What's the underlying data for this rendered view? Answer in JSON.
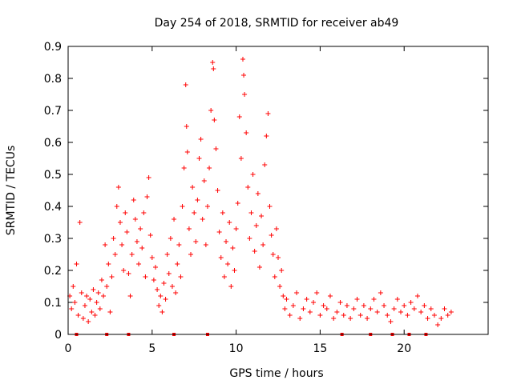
{
  "chart_data": {
    "type": "scatter",
    "title": "Day 254 of 2018, SRMTID for receiver ab49",
    "xlabel": "GPS time / hours",
    "ylabel": "SRMTID / TECUs",
    "xlim": [
      0,
      25
    ],
    "ylim": [
      0,
      0.9
    ],
    "x_ticks": [
      0,
      5,
      10,
      15,
      20
    ],
    "y_ticks": [
      0,
      0.1,
      0.2,
      0.3,
      0.4,
      0.5,
      0.6,
      0.7,
      0.8,
      0.9
    ],
    "grid": false,
    "marker": "+",
    "color": "#ff0000",
    "series": [
      {
        "name": "SRMTID",
        "points": [
          [
            0.1,
            0.12
          ],
          [
            0.2,
            0.08
          ],
          [
            0.3,
            0.15
          ],
          [
            0.4,
            0.1
          ],
          [
            0.5,
            0.22
          ],
          [
            0.6,
            0.06
          ],
          [
            0.7,
            0.35
          ],
          [
            0.8,
            0.13
          ],
          [
            0.9,
            0.05
          ],
          [
            1.0,
            0.09
          ],
          [
            1.1,
            0.12
          ],
          [
            1.2,
            0.04
          ],
          [
            1.3,
            0.11
          ],
          [
            1.4,
            0.07
          ],
          [
            1.5,
            0.14
          ],
          [
            1.6,
            0.06
          ],
          [
            1.7,
            0.1
          ],
          [
            1.8,
            0.13
          ],
          [
            1.9,
            0.08
          ],
          [
            2.0,
            0.17
          ],
          [
            2.1,
            0.12
          ],
          [
            2.2,
            0.28
          ],
          [
            2.3,
            0.15
          ],
          [
            2.4,
            0.22
          ],
          [
            2.5,
            0.07
          ],
          [
            2.6,
            0.18
          ],
          [
            2.7,
            0.3
          ],
          [
            2.8,
            0.25
          ],
          [
            2.9,
            0.4
          ],
          [
            3.0,
            0.46
          ],
          [
            3.1,
            0.35
          ],
          [
            3.2,
            0.28
          ],
          [
            3.3,
            0.2
          ],
          [
            3.4,
            0.38
          ],
          [
            3.5,
            0.32
          ],
          [
            3.6,
            0.19
          ],
          [
            3.7,
            0.12
          ],
          [
            3.8,
            0.25
          ],
          [
            3.9,
            0.42
          ],
          [
            4.0,
            0.36
          ],
          [
            4.1,
            0.29
          ],
          [
            4.2,
            0.22
          ],
          [
            4.3,
            0.33
          ],
          [
            4.4,
            0.27
          ],
          [
            4.5,
            0.38
          ],
          [
            4.6,
            0.18
          ],
          [
            4.7,
            0.43
          ],
          [
            4.8,
            0.49
          ],
          [
            4.9,
            0.31
          ],
          [
            5.0,
            0.24
          ],
          [
            5.1,
            0.17
          ],
          [
            5.2,
            0.21
          ],
          [
            5.3,
            0.14
          ],
          [
            5.4,
            0.09
          ],
          [
            5.5,
            0.12
          ],
          [
            5.6,
            0.07
          ],
          [
            5.7,
            0.16
          ],
          [
            5.8,
            0.11
          ],
          [
            5.9,
            0.25
          ],
          [
            6.0,
            0.19
          ],
          [
            6.1,
            0.3
          ],
          [
            6.2,
            0.15
          ],
          [
            6.3,
            0.36
          ],
          [
            6.4,
            0.13
          ],
          [
            6.5,
            0.22
          ],
          [
            6.6,
            0.28
          ],
          [
            6.7,
            0.18
          ],
          [
            6.8,
            0.4
          ],
          [
            6.9,
            0.52
          ],
          [
            7.0,
            0.78
          ],
          [
            7.05,
            0.65
          ],
          [
            7.1,
            0.57
          ],
          [
            7.2,
            0.33
          ],
          [
            7.3,
            0.25
          ],
          [
            7.4,
            0.46
          ],
          [
            7.5,
            0.38
          ],
          [
            7.6,
            0.29
          ],
          [
            7.7,
            0.42
          ],
          [
            7.8,
            0.55
          ],
          [
            7.9,
            0.61
          ],
          [
            8.0,
            0.36
          ],
          [
            8.1,
            0.48
          ],
          [
            8.2,
            0.28
          ],
          [
            8.3,
            0.4
          ],
          [
            8.4,
            0.52
          ],
          [
            8.5,
            0.7
          ],
          [
            8.6,
            0.85
          ],
          [
            8.65,
            0.83
          ],
          [
            8.7,
            0.67
          ],
          [
            8.8,
            0.58
          ],
          [
            8.9,
            0.45
          ],
          [
            9.0,
            0.32
          ],
          [
            9.1,
            0.24
          ],
          [
            9.2,
            0.38
          ],
          [
            9.3,
            0.18
          ],
          [
            9.4,
            0.29
          ],
          [
            9.5,
            0.22
          ],
          [
            9.6,
            0.35
          ],
          [
            9.7,
            0.15
          ],
          [
            9.8,
            0.27
          ],
          [
            9.9,
            0.2
          ],
          [
            10.0,
            0.33
          ],
          [
            10.1,
            0.41
          ],
          [
            10.2,
            0.68
          ],
          [
            10.3,
            0.55
          ],
          [
            10.4,
            0.86
          ],
          [
            10.45,
            0.81
          ],
          [
            10.5,
            0.75
          ],
          [
            10.6,
            0.63
          ],
          [
            10.7,
            0.46
          ],
          [
            10.8,
            0.3
          ],
          [
            10.9,
            0.38
          ],
          [
            11.0,
            0.5
          ],
          [
            11.1,
            0.26
          ],
          [
            11.2,
            0.34
          ],
          [
            11.3,
            0.44
          ],
          [
            11.4,
            0.21
          ],
          [
            11.5,
            0.37
          ],
          [
            11.6,
            0.28
          ],
          [
            11.7,
            0.53
          ],
          [
            11.8,
            0.62
          ],
          [
            11.9,
            0.69
          ],
          [
            12.0,
            0.4
          ],
          [
            12.1,
            0.31
          ],
          [
            12.2,
            0.25
          ],
          [
            12.3,
            0.18
          ],
          [
            12.4,
            0.33
          ],
          [
            12.5,
            0.24
          ],
          [
            12.6,
            0.15
          ],
          [
            12.7,
            0.2
          ],
          [
            12.8,
            0.12
          ],
          [
            12.9,
            0.08
          ],
          [
            13.0,
            0.11
          ],
          [
            13.2,
            0.06
          ],
          [
            13.4,
            0.09
          ],
          [
            13.6,
            0.13
          ],
          [
            13.8,
            0.05
          ],
          [
            14.0,
            0.08
          ],
          [
            14.2,
            0.11
          ],
          [
            14.4,
            0.07
          ],
          [
            14.6,
            0.1
          ],
          [
            14.8,
            0.13
          ],
          [
            15.0,
            0.06
          ],
          [
            15.2,
            0.09
          ],
          [
            15.4,
            0.08
          ],
          [
            15.6,
            0.12
          ],
          [
            15.8,
            0.05
          ],
          [
            16.0,
            0.07
          ],
          [
            16.2,
            0.1
          ],
          [
            16.4,
            0.06
          ],
          [
            16.6,
            0.09
          ],
          [
            16.8,
            0.05
          ],
          [
            17.0,
            0.08
          ],
          [
            17.2,
            0.11
          ],
          [
            17.4,
            0.06
          ],
          [
            17.6,
            0.09
          ],
          [
            17.8,
            0.05
          ],
          [
            18.0,
            0.08
          ],
          [
            18.2,
            0.11
          ],
          [
            18.4,
            0.07
          ],
          [
            18.6,
            0.13
          ],
          [
            18.8,
            0.09
          ],
          [
            19.0,
            0.06
          ],
          [
            19.2,
            0.04
          ],
          [
            19.4,
            0.08
          ],
          [
            19.6,
            0.11
          ],
          [
            19.8,
            0.07
          ],
          [
            20.0,
            0.09
          ],
          [
            20.2,
            0.06
          ],
          [
            20.4,
            0.1
          ],
          [
            20.6,
            0.08
          ],
          [
            20.8,
            0.12
          ],
          [
            21.0,
            0.07
          ],
          [
            21.2,
            0.09
          ],
          [
            21.4,
            0.05
          ],
          [
            21.6,
            0.08
          ],
          [
            21.8,
            0.06
          ],
          [
            22.0,
            0.03
          ],
          [
            22.2,
            0.05
          ],
          [
            22.4,
            0.08
          ],
          [
            22.6,
            0.06
          ],
          [
            22.8,
            0.07
          ]
        ]
      }
    ],
    "bottom_markers_x": [
      0.5,
      2.3,
      3.6,
      6.3,
      8.3,
      16.3,
      18.0,
      19.3,
      20.3,
      21.3
    ]
  }
}
